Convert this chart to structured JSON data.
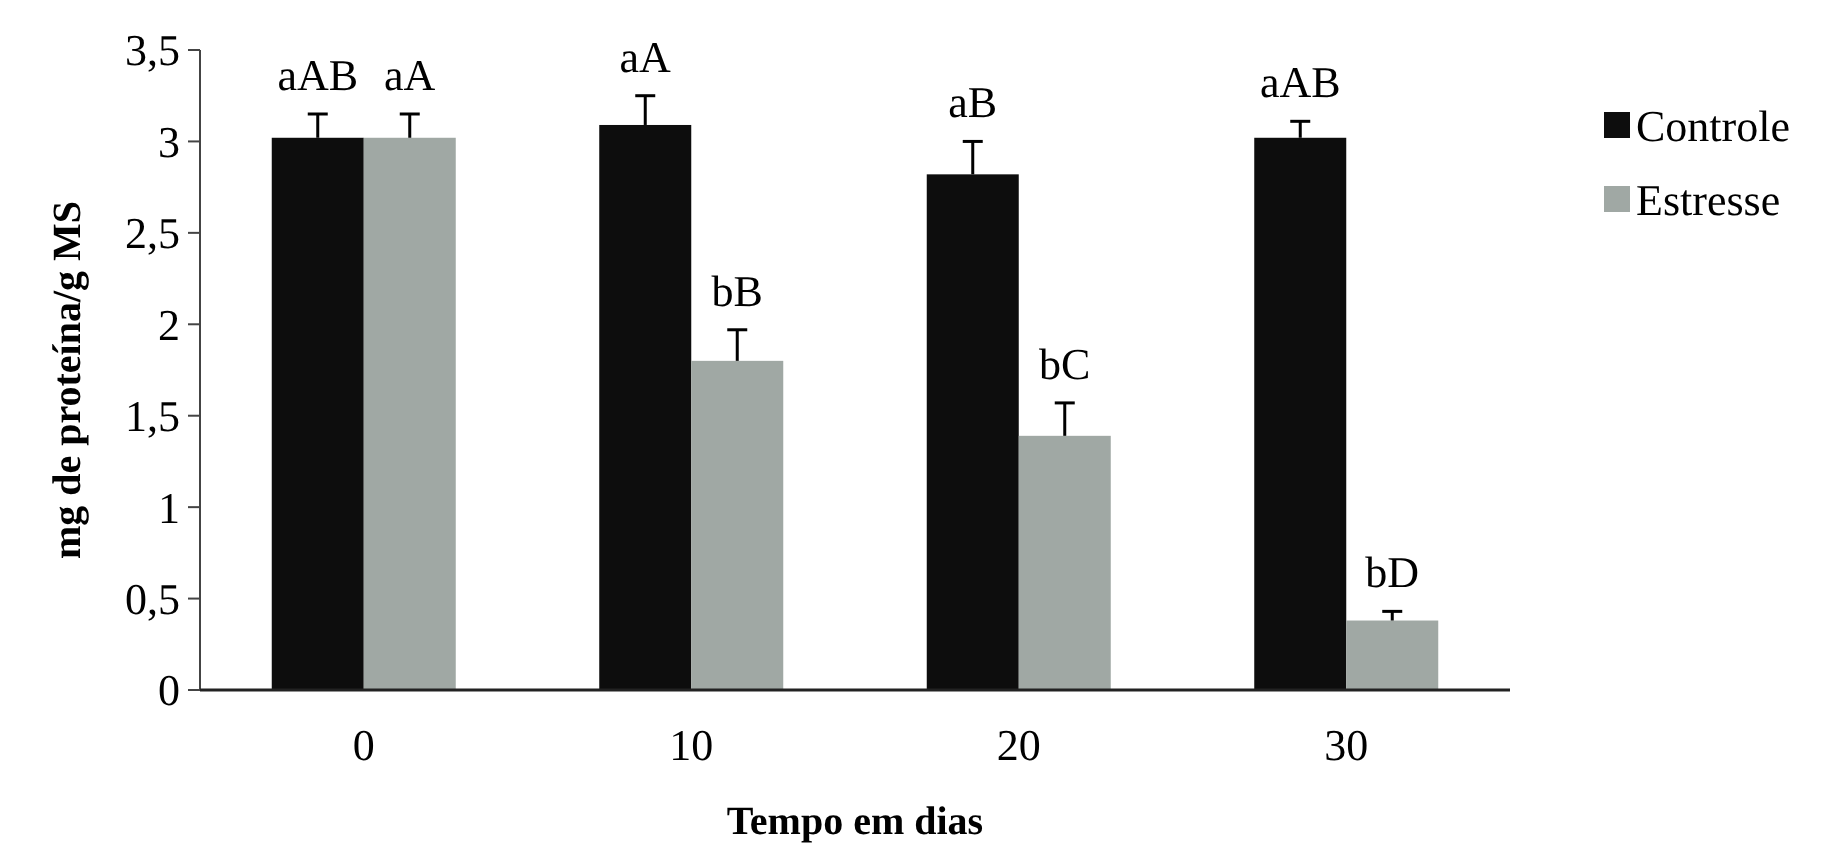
{
  "chart_data": {
    "type": "bar",
    "xlabel": "Tempo em dias",
    "ylabel": "mg de proteína/g MS",
    "categories": [
      "0",
      "10",
      "20",
      "30"
    ],
    "series": [
      {
        "name": "Controle",
        "color": "#0d0d0d",
        "values": [
          3.02,
          3.09,
          2.82,
          3.02
        ],
        "errors": [
          0.13,
          0.16,
          0.18,
          0.09
        ]
      },
      {
        "name": "Estresse",
        "color": "#a0a8a4",
        "values": [
          3.02,
          1.8,
          1.39,
          0.38
        ],
        "errors": [
          0.13,
          0.17,
          0.18,
          0.05
        ]
      }
    ],
    "ylim": [
      0,
      3.5
    ],
    "yticks": [
      {
        "value": 0,
        "label": "0"
      },
      {
        "value": 0.5,
        "label": "0,5"
      },
      {
        "value": 1,
        "label": "1"
      },
      {
        "value": 1.5,
        "label": "1,5"
      },
      {
        "value": 2,
        "label": "2"
      },
      {
        "value": 2.5,
        "label": "2,5"
      },
      {
        "value": 3,
        "label": "3"
      },
      {
        "value": 3.5,
        "label": "3,5"
      }
    ],
    "annotations": [
      {
        "text": "aAB",
        "x": "0",
        "y": 3.02
      },
      {
        "text": "aA",
        "x": "0",
        "y": 3.02
      },
      {
        "text": "aA",
        "x": "10",
        "y": 3.09
      },
      {
        "text": "bB",
        "x": "10",
        "y": 1.8
      },
      {
        "text": "aB",
        "x": "20",
        "y": 2.82
      },
      {
        "text": "bC",
        "x": "20",
        "y": 1.39
      },
      {
        "text": "aAB",
        "x": "30",
        "y": 3.02
      },
      {
        "text": "bD",
        "x": "30",
        "y": 0.38
      }
    ],
    "legend": "right",
    "grid": false
  }
}
